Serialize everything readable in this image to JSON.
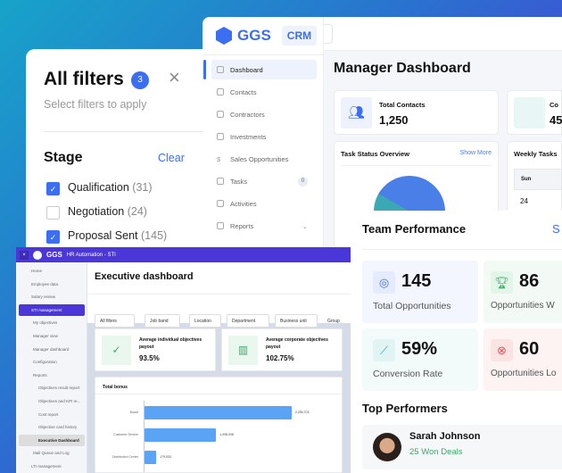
{
  "crm": {
    "brand": "GGS",
    "tag": "CRM",
    "nav": [
      {
        "label": "Dashboard"
      },
      {
        "label": "Contacts"
      },
      {
        "label": "Contractors"
      },
      {
        "label": "Investments"
      },
      {
        "label": "Sales Opportunities"
      },
      {
        "label": "Tasks",
        "badge": "0"
      },
      {
        "label": "Activities"
      },
      {
        "label": "Reports"
      }
    ],
    "title": "Manager Dashboard",
    "total_contacts_label": "Total Contacts",
    "total_contacts": "1,250",
    "card2_label": "Co",
    "card2_value": "45",
    "task_status": "Task Status Overview",
    "show_more": "Show More",
    "weekly_tasks": "Weekly Tasks",
    "day": "Sun",
    "date": "24"
  },
  "filters": {
    "title": "All filters",
    "count": "3",
    "subtitle": "Select filters to apply",
    "section": "Stage",
    "clear": "Clear",
    "options": [
      {
        "label": "Qualification",
        "count": "(31)",
        "checked": true
      },
      {
        "label": "Negotiation",
        "count": "(24)",
        "checked": false
      },
      {
        "label": "Proposal Sent",
        "count": "(145)",
        "checked": true
      }
    ]
  },
  "hr": {
    "brand": "GGS",
    "app": "HR Automation - STI",
    "nav": [
      "Home",
      "Employee data",
      "Salary review",
      "STI management",
      "My objectives",
      "Manager view",
      "Manager dashboard",
      "Configuration",
      "Reports",
      "Objectives result report",
      "Objectives and KPI re...",
      "Cost report",
      "Objective card history",
      "Executive Dashboard",
      "Mail Queue and Log",
      "LTI management"
    ],
    "title": "Executive dashboard",
    "filters": [
      "All filters",
      "Job band",
      "Location",
      "Department",
      "Business unit",
      "Group"
    ],
    "kpi1_label": "Average individual objectives payout",
    "kpi1": "93.5%",
    "kpi2_label": "Average corporate objectives payout",
    "kpi2": "102.75%",
    "chart_title": "Total bonus",
    "bars": [
      {
        "label": "Board",
        "value": 2255703,
        "text": "2,255,703"
      },
      {
        "label": "Customer Service",
        "value": 1098098,
        "text": "1,098,098"
      },
      {
        "label": "Distribution Center",
        "value": 179533,
        "text": "179,533"
      }
    ]
  },
  "team": {
    "title": "Team Performance",
    "link": "S",
    "stats": [
      {
        "value": "145",
        "label": "Total Opportunities"
      },
      {
        "value": "86",
        "label": "Opportunities W"
      },
      {
        "value": "59%",
        "label": "Conversion Rate"
      },
      {
        "value": "60",
        "label": "Opportunities Lo"
      }
    ],
    "top": "Top Performers",
    "performer": {
      "name": "Sarah Johnson",
      "deals": "25 Won Deals"
    }
  },
  "colors": {
    "accent": "#3b6ef0",
    "hr_purple": "#4b36d8",
    "bar": "#5ba3f5",
    "won": "#3da86a"
  }
}
